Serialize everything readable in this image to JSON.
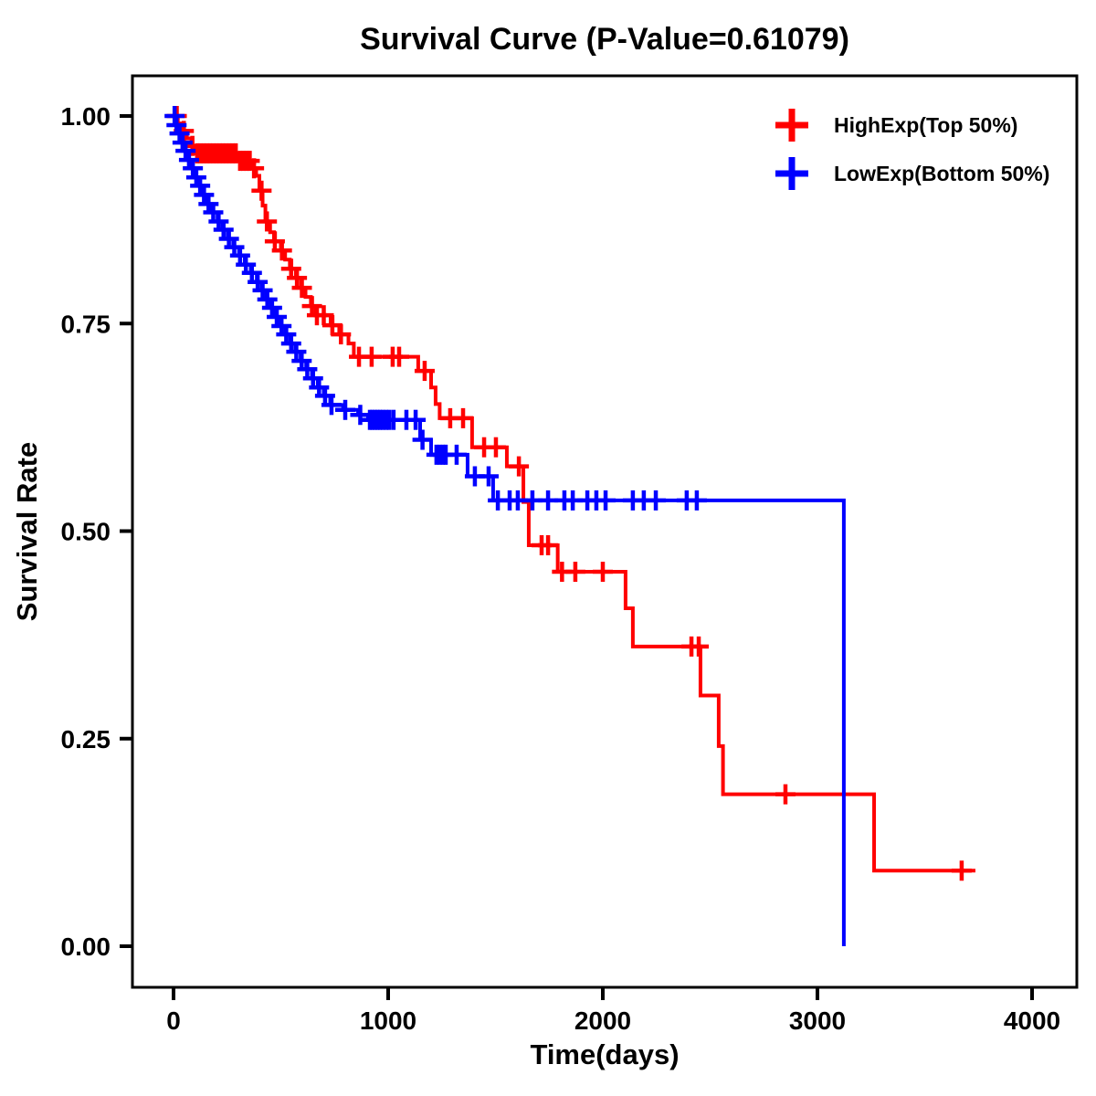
{
  "chart_data": {
    "type": "line",
    "subtype": "kaplan_meier_step_survival",
    "title": "Survival Curve (P-Value=0.61079)",
    "p_value": "0.61079",
    "xlabel": "Time(days)",
    "ylabel": "Survival Rate",
    "grid": false,
    "background": "#FFFFFF",
    "axis_color": "#000000",
    "x_axis": {
      "range": [
        0,
        4000
      ],
      "ticks": [
        {
          "value": 0,
          "label": "0"
        },
        {
          "value": 1000,
          "label": "1000"
        },
        {
          "value": 2000,
          "label": "2000"
        },
        {
          "value": 3000,
          "label": "3000"
        },
        {
          "value": 4000,
          "label": "4000"
        }
      ]
    },
    "y_axis": {
      "range": [
        0,
        1
      ],
      "ticks": [
        {
          "value": 0,
          "label": "0.00"
        },
        {
          "value": 0.25,
          "label": "0.25"
        },
        {
          "value": 0.5,
          "label": "0.50"
        },
        {
          "value": 0.75,
          "label": "0.75"
        },
        {
          "value": 1,
          "label": "1.00"
        }
      ]
    },
    "legend": {
      "position": "top-right",
      "entries": [
        {
          "label": "HighExp(Top 50%)",
          "color": "#FF0000",
          "marker": "plus"
        },
        {
          "label": "LowExp(Bottom 50%)",
          "color": "#0000FF",
          "marker": "plus"
        }
      ]
    },
    "series": [
      {
        "name": "HighExp(Top 50%)",
        "color": "#FF0000",
        "end_time": 3736,
        "steps": [
          [
            0,
            1.0
          ],
          [
            20,
            0.991
          ],
          [
            40,
            0.982
          ],
          [
            62,
            0.973
          ],
          [
            84,
            0.964
          ],
          [
            100,
            0.955
          ],
          [
            300,
            0.946
          ],
          [
            370,
            0.937
          ],
          [
            385,
            0.928
          ],
          [
            400,
            0.91
          ],
          [
            415,
            0.892
          ],
          [
            428,
            0.873
          ],
          [
            450,
            0.86
          ],
          [
            468,
            0.849
          ],
          [
            500,
            0.838
          ],
          [
            520,
            0.827
          ],
          [
            542,
            0.816
          ],
          [
            570,
            0.805
          ],
          [
            594,
            0.793
          ],
          [
            615,
            0.782
          ],
          [
            640,
            0.771
          ],
          [
            662,
            0.76
          ],
          [
            732,
            0.748
          ],
          [
            772,
            0.737
          ],
          [
            815,
            0.726
          ],
          [
            840,
            0.71
          ],
          [
            1140,
            0.693
          ],
          [
            1200,
            0.673
          ],
          [
            1221,
            0.653
          ],
          [
            1240,
            0.636
          ],
          [
            1391,
            0.601
          ],
          [
            1553,
            0.578
          ],
          [
            1630,
            0.535
          ],
          [
            1655,
            0.483
          ],
          [
            1790,
            0.451
          ],
          [
            2106,
            0.407
          ],
          [
            2140,
            0.361
          ],
          [
            2455,
            0.302
          ],
          [
            2540,
            0.241
          ],
          [
            2560,
            0.183
          ],
          [
            3264,
            0.091
          ]
        ],
        "censors": [
          [
            15,
            1.0
          ],
          [
            48,
            0.982
          ],
          [
            88,
            0.964
          ],
          [
            110,
            0.955
          ],
          [
            125,
            0.955
          ],
          [
            140,
            0.955
          ],
          [
            155,
            0.955
          ],
          [
            170,
            0.955
          ],
          [
            185,
            0.955
          ],
          [
            200,
            0.955
          ],
          [
            215,
            0.955
          ],
          [
            230,
            0.955
          ],
          [
            245,
            0.955
          ],
          [
            260,
            0.955
          ],
          [
            275,
            0.955
          ],
          [
            290,
            0.955
          ],
          [
            310,
            0.946
          ],
          [
            325,
            0.946
          ],
          [
            340,
            0.946
          ],
          [
            355,
            0.946
          ],
          [
            375,
            0.937
          ],
          [
            410,
            0.91
          ],
          [
            435,
            0.873
          ],
          [
            472,
            0.849
          ],
          [
            505,
            0.838
          ],
          [
            548,
            0.816
          ],
          [
            575,
            0.805
          ],
          [
            598,
            0.793
          ],
          [
            645,
            0.771
          ],
          [
            668,
            0.76
          ],
          [
            700,
            0.76
          ],
          [
            740,
            0.748
          ],
          [
            780,
            0.737
          ],
          [
            864,
            0.71
          ],
          [
            923,
            0.71
          ],
          [
            1021,
            0.71
          ],
          [
            1051,
            0.71
          ],
          [
            1170,
            0.693
          ],
          [
            1289,
            0.636
          ],
          [
            1349,
            0.636
          ],
          [
            1447,
            0.601
          ],
          [
            1502,
            0.601
          ],
          [
            1609,
            0.578
          ],
          [
            1715,
            0.483
          ],
          [
            1745,
            0.483
          ],
          [
            1810,
            0.451
          ],
          [
            1872,
            0.451
          ],
          [
            2000,
            0.451
          ],
          [
            2413,
            0.361
          ],
          [
            2447,
            0.361
          ],
          [
            2851,
            0.183
          ],
          [
            3672,
            0.091
          ]
        ]
      },
      {
        "name": "LowExp(Bottom 50%)",
        "color": "#0000FF",
        "end_time": 3123,
        "steps": [
          [
            0,
            1.0
          ],
          [
            10,
            0.989
          ],
          [
            24,
            0.979
          ],
          [
            38,
            0.968
          ],
          [
            52,
            0.958
          ],
          [
            68,
            0.947
          ],
          [
            85,
            0.937
          ],
          [
            102,
            0.926
          ],
          [
            119,
            0.916
          ],
          [
            138,
            0.905
          ],
          [
            158,
            0.894
          ],
          [
            180,
            0.884
          ],
          [
            205,
            0.873
          ],
          [
            228,
            0.863
          ],
          [
            252,
            0.852
          ],
          [
            278,
            0.842
          ],
          [
            305,
            0.832
          ],
          [
            332,
            0.821
          ],
          [
            360,
            0.811
          ],
          [
            388,
            0.8
          ],
          [
            410,
            0.79
          ],
          [
            432,
            0.779
          ],
          [
            454,
            0.769
          ],
          [
            476,
            0.758
          ],
          [
            498,
            0.747
          ],
          [
            520,
            0.737
          ],
          [
            543,
            0.726
          ],
          [
            567,
            0.716
          ],
          [
            592,
            0.705
          ],
          [
            618,
            0.695
          ],
          [
            645,
            0.684
          ],
          [
            672,
            0.673
          ],
          [
            700,
            0.663
          ],
          [
            730,
            0.652
          ],
          [
            790,
            0.646
          ],
          [
            860,
            0.64
          ],
          [
            906,
            0.634
          ],
          [
            1149,
            0.61
          ],
          [
            1200,
            0.592
          ],
          [
            1370,
            0.566
          ],
          [
            1489,
            0.537
          ],
          [
            3123,
            0.0
          ]
        ],
        "censors": [
          [
            5,
            1.0
          ],
          [
            14,
            0.989
          ],
          [
            28,
            0.979
          ],
          [
            42,
            0.968
          ],
          [
            56,
            0.958
          ],
          [
            72,
            0.947
          ],
          [
            90,
            0.937
          ],
          [
            106,
            0.926
          ],
          [
            124,
            0.916
          ],
          [
            142,
            0.905
          ],
          [
            163,
            0.894
          ],
          [
            185,
            0.884
          ],
          [
            210,
            0.873
          ],
          [
            233,
            0.863
          ],
          [
            258,
            0.852
          ],
          [
            283,
            0.842
          ],
          [
            310,
            0.832
          ],
          [
            337,
            0.821
          ],
          [
            365,
            0.811
          ],
          [
            392,
            0.8
          ],
          [
            415,
            0.79
          ],
          [
            437,
            0.779
          ],
          [
            459,
            0.769
          ],
          [
            481,
            0.758
          ],
          [
            503,
            0.747
          ],
          [
            525,
            0.737
          ],
          [
            548,
            0.726
          ],
          [
            572,
            0.716
          ],
          [
            597,
            0.705
          ],
          [
            623,
            0.695
          ],
          [
            650,
            0.684
          ],
          [
            678,
            0.673
          ],
          [
            706,
            0.663
          ],
          [
            736,
            0.652
          ],
          [
            800,
            0.646
          ],
          [
            870,
            0.64
          ],
          [
            915,
            0.634
          ],
          [
            926,
            0.634
          ],
          [
            938,
            0.634
          ],
          [
            950,
            0.634
          ],
          [
            962,
            0.634
          ],
          [
            975,
            0.634
          ],
          [
            990,
            0.634
          ],
          [
            1005,
            0.634
          ],
          [
            1025,
            0.634
          ],
          [
            1085,
            0.634
          ],
          [
            1128,
            0.634
          ],
          [
            1160,
            0.61
          ],
          [
            1225,
            0.592
          ],
          [
            1240,
            0.592
          ],
          [
            1255,
            0.592
          ],
          [
            1268,
            0.592
          ],
          [
            1319,
            0.592
          ],
          [
            1404,
            0.566
          ],
          [
            1468,
            0.566
          ],
          [
            1511,
            0.537
          ],
          [
            1566,
            0.537
          ],
          [
            1604,
            0.537
          ],
          [
            1672,
            0.537
          ],
          [
            1745,
            0.537
          ],
          [
            1821,
            0.537
          ],
          [
            1860,
            0.537
          ],
          [
            1928,
            0.537
          ],
          [
            1970,
            0.537
          ],
          [
            2013,
            0.537
          ],
          [
            2140,
            0.537
          ],
          [
            2191,
            0.537
          ],
          [
            2247,
            0.537
          ],
          [
            2391,
            0.537
          ],
          [
            2438,
            0.537
          ]
        ]
      }
    ]
  }
}
